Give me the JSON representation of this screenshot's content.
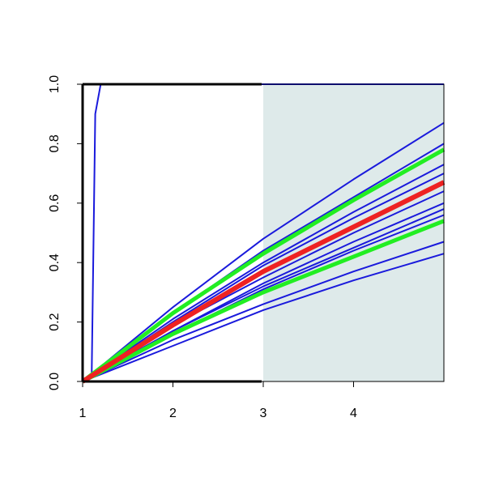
{
  "chart_data": {
    "type": "line",
    "xlim": [
      1,
      5
    ],
    "ylim": [
      0,
      1
    ],
    "xticks": [
      1,
      2,
      3,
      4
    ],
    "yticks": [
      {
        "value": 0,
        "label": "0.0"
      },
      {
        "value": 0.2,
        "label": "0.2"
      },
      {
        "value": 0.4,
        "label": "0.4"
      },
      {
        "value": 0.6,
        "label": "0.6"
      },
      {
        "value": 0.8,
        "label": "0.8"
      },
      {
        "value": 1,
        "label": "1.0"
      }
    ],
    "shaded_x": [
      3,
      5
    ],
    "shade_color": "#deeaea",
    "x": [
      1,
      2,
      3,
      4,
      5
    ],
    "series": [
      {
        "color": "#1a1adc",
        "width": 2,
        "x": [
          1,
          1.1,
          1.14,
          1.2,
          5
        ],
        "values": [
          0,
          0.02,
          0.9,
          1,
          1
        ]
      },
      {
        "color": "#1a1adc",
        "width": 2,
        "values": [
          0,
          0.25,
          0.48,
          0.68,
          0.87
        ]
      },
      {
        "color": "#1a1adc",
        "width": 2,
        "values": [
          0,
          0.23,
          0.44,
          0.62,
          0.8
        ]
      },
      {
        "color": "#1a1adc",
        "width": 2,
        "values": [
          0,
          0.21,
          0.4,
          0.57,
          0.73
        ]
      },
      {
        "color": "#1a1adc",
        "width": 2,
        "values": [
          0,
          0.2,
          0.39,
          0.55,
          0.7
        ]
      },
      {
        "color": "#1a1adc",
        "width": 2,
        "values": [
          0,
          0.19,
          0.35,
          0.5,
          0.64
        ]
      },
      {
        "color": "#1a1adc",
        "width": 2,
        "values": [
          0,
          0.17,
          0.33,
          0.47,
          0.6
        ]
      },
      {
        "color": "#1a1adc",
        "width": 2,
        "values": [
          0,
          0.17,
          0.32,
          0.45,
          0.58
        ]
      },
      {
        "color": "#1a1adc",
        "width": 2,
        "values": [
          0,
          0.16,
          0.31,
          0.44,
          0.56
        ]
      },
      {
        "color": "#1a1adc",
        "width": 2,
        "values": [
          0,
          0.14,
          0.26,
          0.37,
          0.47
        ]
      },
      {
        "color": "#1a1adc",
        "width": 2,
        "values": [
          0,
          0.12,
          0.24,
          0.34,
          0.43
        ]
      },
      {
        "color": "#22ee22",
        "width": 5,
        "values": [
          0,
          0.23,
          0.43,
          0.61,
          0.78
        ]
      },
      {
        "color": "#22ee22",
        "width": 5,
        "values": [
          0,
          0.16,
          0.3,
          0.42,
          0.54
        ]
      },
      {
        "color": "#ee2222",
        "width": 6,
        "values": [
          0,
          0.19,
          0.37,
          0.52,
          0.67
        ]
      }
    ]
  }
}
